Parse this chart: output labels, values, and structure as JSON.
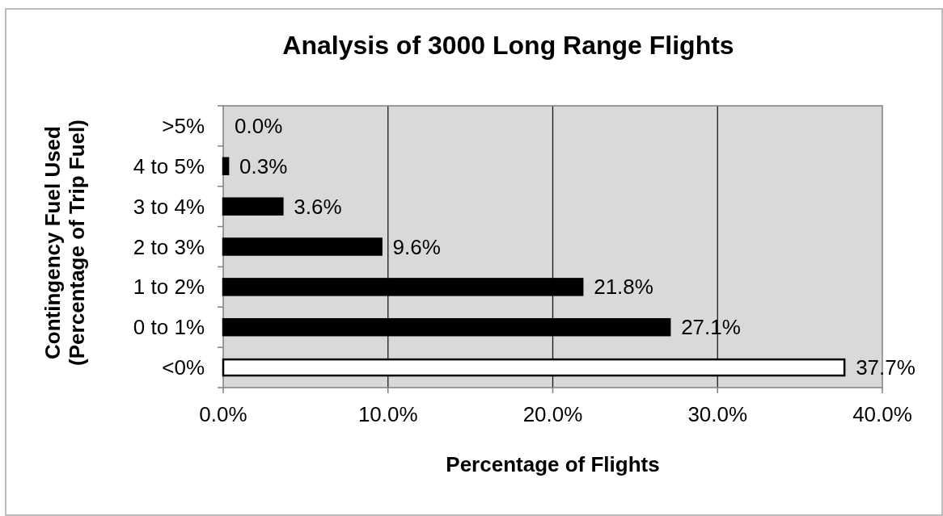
{
  "chart_data": {
    "type": "bar",
    "orientation": "horizontal",
    "title": "Analysis of 3000 Long Range Flights",
    "xlabel": "Percentage of Flights",
    "ylabel": "Contingency Fuel Used\n(Percentage of Trip Fuel)",
    "categories": [
      ">5%",
      "4 to 5%",
      "3 to 4%",
      "2 to 3%",
      "1 to 2%",
      "0 to 1%",
      "<0%"
    ],
    "values": [
      0.0,
      0.3,
      3.6,
      9.6,
      21.8,
      27.1,
      37.7
    ],
    "colors": [
      "#000000",
      "#000000",
      "#000000",
      "#000000",
      "#000000",
      "#000000",
      "#ffffff"
    ],
    "value_labels": [
      "0.0%",
      "0.3%",
      "3.6%",
      "9.6%",
      "21.8%",
      "27.1%",
      "37.7%"
    ],
    "xlim": [
      0,
      40
    ],
    "xticks": [
      {
        "value": 0,
        "label": "0.0%"
      },
      {
        "value": 10,
        "label": "10.0%"
      },
      {
        "value": 20,
        "label": "20.0%"
      },
      {
        "value": 30,
        "label": "30.0%"
      },
      {
        "value": 40,
        "label": "40.0%"
      }
    ],
    "grid": "x"
  }
}
